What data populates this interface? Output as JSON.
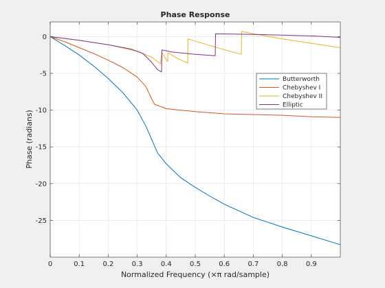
{
  "chart_data": {
    "type": "line",
    "title": "Phase Response",
    "xlabel": "Normalized Frequency (×π rad/sample)",
    "ylabel": "Phase (radians)",
    "xlim": [
      0,
      1
    ],
    "ylim": [
      -30,
      2
    ],
    "xticks": [
      0,
      0.1,
      0.2,
      0.3,
      0.4,
      0.5,
      0.6,
      0.7,
      0.8,
      0.9
    ],
    "xtick_labels": [
      "0",
      "0.1",
      "0.2",
      "0.3",
      "0.4",
      "0.5",
      "0.6",
      "0.7",
      "0.8",
      "0.9"
    ],
    "yticks": [
      0,
      -5,
      -10,
      -15,
      -20,
      -25
    ],
    "ytick_labels": [
      "0",
      "-5",
      "-10",
      "-15",
      "-20",
      "-25"
    ],
    "grid": true,
    "legend_position": "right",
    "series": [
      {
        "name": "Butterworth",
        "color": "#0072bd",
        "points": [
          [
            0,
            0
          ],
          [
            0.05,
            -1.2
          ],
          [
            0.1,
            -2.5
          ],
          [
            0.15,
            -4.0
          ],
          [
            0.2,
            -5.7
          ],
          [
            0.25,
            -7.6
          ],
          [
            0.3,
            -10.0
          ],
          [
            0.33,
            -12.2
          ],
          [
            0.35,
            -14.0
          ],
          [
            0.37,
            -15.8
          ],
          [
            0.4,
            -17.3
          ],
          [
            0.45,
            -19.2
          ],
          [
            0.5,
            -20.5
          ],
          [
            0.55,
            -21.7
          ],
          [
            0.6,
            -22.8
          ],
          [
            0.7,
            -24.6
          ],
          [
            0.8,
            -25.9
          ],
          [
            0.9,
            -27.1
          ],
          [
            1.0,
            -28.3
          ]
        ]
      },
      {
        "name": "Chebyshev I",
        "color": "#d95319",
        "points": [
          [
            0,
            0
          ],
          [
            0.05,
            -0.7
          ],
          [
            0.1,
            -1.5
          ],
          [
            0.15,
            -2.3
          ],
          [
            0.2,
            -3.2
          ],
          [
            0.25,
            -4.2
          ],
          [
            0.3,
            -5.5
          ],
          [
            0.33,
            -6.8
          ],
          [
            0.35,
            -8.5
          ],
          [
            0.36,
            -9.2
          ],
          [
            0.4,
            -9.8
          ],
          [
            0.5,
            -10.2
          ],
          [
            0.6,
            -10.5
          ],
          [
            0.7,
            -10.6
          ],
          [
            0.8,
            -10.7
          ],
          [
            0.9,
            -10.9
          ],
          [
            1.0,
            -11.0
          ]
        ]
      },
      {
        "name": "Chebyshev II",
        "color": "#edb120",
        "points": [
          [
            0,
            0
          ],
          [
            0.1,
            -0.5
          ],
          [
            0.2,
            -1.1
          ],
          [
            0.3,
            -2.0
          ],
          [
            0.35,
            -2.8
          ],
          [
            0.38,
            -3.7
          ],
          [
            0.385,
            -2.2
          ],
          [
            0.405,
            -3.4
          ],
          [
            0.406,
            -2.2
          ],
          [
            0.44,
            -3.0
          ],
          [
            0.474,
            -3.6
          ],
          [
            0.475,
            -0.3
          ],
          [
            0.55,
            -1.2
          ],
          [
            0.62,
            -2.0
          ],
          [
            0.659,
            -2.4
          ],
          [
            0.66,
            0.7
          ],
          [
            0.7,
            0.4
          ],
          [
            0.8,
            -0.3
          ],
          [
            0.9,
            -0.9
          ],
          [
            1.0,
            -1.5
          ]
        ]
      },
      {
        "name": "Elliptic",
        "color": "#7e2f8e",
        "points": [
          [
            0,
            0
          ],
          [
            0.1,
            -0.5
          ],
          [
            0.2,
            -1.1
          ],
          [
            0.28,
            -1.7
          ],
          [
            0.32,
            -2.3
          ],
          [
            0.35,
            -3.5
          ],
          [
            0.37,
            -4.5
          ],
          [
            0.384,
            -4.8
          ],
          [
            0.385,
            -1.8
          ],
          [
            0.42,
            -2.1
          ],
          [
            0.5,
            -2.4
          ],
          [
            0.569,
            -2.6
          ],
          [
            0.57,
            0.4
          ],
          [
            0.7,
            0.3
          ],
          [
            0.8,
            0.2
          ],
          [
            0.9,
            0.1
          ],
          [
            1.0,
            -0.1
          ]
        ]
      }
    ]
  }
}
